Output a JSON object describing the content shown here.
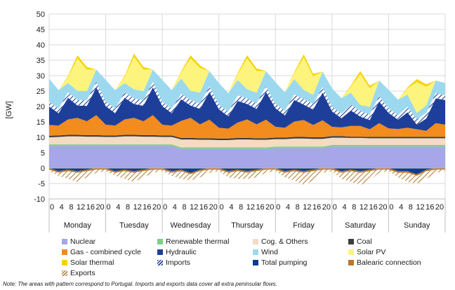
{
  "chart_data": {
    "type": "area",
    "title": "",
    "ylabel": "[GW]",
    "xlabel": "",
    "ylim": [
      -10,
      50
    ],
    "yticks": [
      -10,
      -5,
      0,
      5,
      10,
      15,
      20,
      25,
      30,
      35,
      40,
      45,
      50
    ],
    "hour_ticks": [
      "0",
      "4",
      "8",
      "12",
      "16",
      "20"
    ],
    "days": [
      "Monday",
      "Tuesday",
      "Wednesday",
      "Thursday",
      "Friday",
      "Saturday",
      "Sunday"
    ],
    "x": [
      0,
      4,
      8,
      12,
      16,
      20,
      24,
      28,
      32,
      36,
      40,
      44,
      48,
      52,
      56,
      60,
      64,
      68,
      72,
      76,
      80,
      84,
      88,
      92,
      96,
      100,
      104,
      108,
      112,
      116,
      120,
      124,
      128,
      132,
      136,
      140,
      144,
      148,
      152,
      156,
      160,
      164,
      168
    ],
    "grid": true,
    "legend_position": "bottom",
    "series": [
      {
        "name": "Nuclear",
        "color": "#a6a6e8",
        "pattern": false,
        "values": [
          7.2,
          7.2,
          7.2,
          7.2,
          7.2,
          7.2,
          7.2,
          7.2,
          7.2,
          7.2,
          7.2,
          7.2,
          7.2,
          7.2,
          6.2,
          6.2,
          6.2,
          6.2,
          6.2,
          6.2,
          6.2,
          6.2,
          6.2,
          6.2,
          6.5,
          6.5,
          6.5,
          6.5,
          6.5,
          6.5,
          7.0,
          7.0,
          7.0,
          7.0,
          7.0,
          7.0,
          7.0,
          7.0,
          7.0,
          7.0,
          7.0,
          7.0,
          7.0
        ]
      },
      {
        "name": "Renewable thermal",
        "color": "#7ccf87",
        "pattern": false,
        "values": [
          0.5,
          0.5,
          0.5,
          0.5,
          0.5,
          0.5,
          0.5,
          0.5,
          0.5,
          0.5,
          0.5,
          0.5,
          0.5,
          0.5,
          0.5,
          0.5,
          0.5,
          0.5,
          0.5,
          0.5,
          0.5,
          0.5,
          0.5,
          0.5,
          0.5,
          0.5,
          0.5,
          0.5,
          0.5,
          0.5,
          0.5,
          0.5,
          0.5,
          0.5,
          0.5,
          0.5,
          0.5,
          0.5,
          0.5,
          0.5,
          0.5,
          0.5,
          0.5
        ]
      },
      {
        "name": "Cog. & Others",
        "color": "#f3dcc3",
        "pattern": false,
        "values": [
          2.3,
          2.4,
          2.6,
          2.6,
          2.5,
          2.5,
          2.4,
          2.4,
          2.6,
          2.6,
          2.5,
          2.5,
          2.4,
          2.4,
          2.6,
          2.6,
          2.5,
          2.5,
          2.4,
          2.4,
          2.6,
          2.6,
          2.5,
          2.5,
          2.4,
          2.4,
          2.6,
          2.6,
          2.5,
          2.5,
          2.4,
          2.4,
          2.3,
          2.3,
          2.2,
          2.2,
          2.2,
          2.2,
          2.2,
          2.2,
          2.2,
          2.2,
          2.2
        ]
      },
      {
        "name": "Coal",
        "color": "#3d3d3d",
        "pattern": false,
        "values": [
          0.5,
          0.5,
          0.5,
          0.5,
          0.5,
          0.5,
          0.5,
          0.5,
          0.5,
          0.5,
          0.5,
          0.5,
          0.5,
          0.5,
          0.5,
          0.5,
          0.5,
          0.5,
          0.5,
          0.5,
          0.5,
          0.5,
          0.5,
          0.5,
          0.5,
          0.5,
          0.5,
          0.5,
          0.5,
          0.5,
          0.5,
          0.5,
          0.4,
          0.4,
          0.4,
          0.4,
          0.4,
          0.4,
          0.4,
          0.4,
          0.4,
          0.4,
          0.4
        ]
      },
      {
        "name": "Gas - combined cycle",
        "color": "#f28c1e",
        "pattern": false,
        "values": [
          3.5,
          3.2,
          5.0,
          5.5,
          4.5,
          6.5,
          3.5,
          3.2,
          5.0,
          5.5,
          4.5,
          6.5,
          3.5,
          3.2,
          5.5,
          6.5,
          4.5,
          6.0,
          3.5,
          3.2,
          5.0,
          6.0,
          4.5,
          6.0,
          3.5,
          3.2,
          5.0,
          5.5,
          4.0,
          5.5,
          3.0,
          2.8,
          3.5,
          3.5,
          2.5,
          4.5,
          2.8,
          2.6,
          3.0,
          2.5,
          2.0,
          4.5,
          4.0
        ]
      },
      {
        "name": "Hydraulic",
        "color": "#1e3f99",
        "pattern": false,
        "values": [
          6.0,
          4.0,
          7.0,
          4.0,
          5.0,
          9.0,
          6.0,
          4.0,
          7.0,
          4.5,
          5.0,
          9.0,
          6.0,
          4.0,
          7.0,
          4.0,
          5.0,
          9.0,
          6.0,
          4.0,
          7.0,
          5.0,
          5.0,
          9.0,
          6.0,
          4.0,
          7.0,
          5.0,
          5.0,
          9.0,
          5.0,
          3.0,
          5.0,
          3.0,
          3.0,
          7.0,
          5.0,
          3.0,
          5.0,
          1.5,
          4.0,
          8.0,
          8.0
        ]
      },
      {
        "name": "Imports",
        "color": "#ffffff",
        "pattern": true,
        "values": [
          1.5,
          1.5,
          1.8,
          1.8,
          1.8,
          1.8,
          1.5,
          1.5,
          1.8,
          1.8,
          1.8,
          1.8,
          1.5,
          1.5,
          1.8,
          1.8,
          1.8,
          1.8,
          1.5,
          1.5,
          1.8,
          1.8,
          1.8,
          1.8,
          1.5,
          1.5,
          1.8,
          1.8,
          1.8,
          1.8,
          1.5,
          1.5,
          1.8,
          1.8,
          1.8,
          1.8,
          1.5,
          1.5,
          1.8,
          1.8,
          1.8,
          1.8,
          1.5
        ]
      },
      {
        "name": "Wind",
        "color": "#9dd9ee",
        "pattern": false,
        "values": [
          7.5,
          6.0,
          3.0,
          3.0,
          3.0,
          4.0,
          7.0,
          6.0,
          3.0,
          3.0,
          3.0,
          4.0,
          7.0,
          6.0,
          5.0,
          3.0,
          3.5,
          5.0,
          7.0,
          6.0,
          5.0,
          3.0,
          3.5,
          5.0,
          7.0,
          6.0,
          5.0,
          3.0,
          3.0,
          5.0,
          6.0,
          5.0,
          4.0,
          2.0,
          2.5,
          5.0,
          6.0,
          5.0,
          4.0,
          2.0,
          2.5,
          4.0,
          4.0
        ]
      },
      {
        "name": "Solar PV",
        "color": "#fdf47d",
        "pattern": false,
        "values": [
          0,
          0,
          2.0,
          10.5,
          7.0,
          0,
          0,
          0,
          2.0,
          10.5,
          7.0,
          0,
          0,
          0,
          2.0,
          10.5,
          8.0,
          0,
          0,
          0,
          2.0,
          10.0,
          7.0,
          0,
          0,
          0,
          2.0,
          10.5,
          6.0,
          0,
          0,
          0,
          2.0,
          10.0,
          6.0,
          0,
          0,
          0,
          2.0,
          10.0,
          6.0,
          0,
          0
        ]
      },
      {
        "name": "Solar thermal",
        "color": "#f5d300",
        "pattern": false,
        "values": [
          0,
          0,
          0.3,
          1.0,
          0.8,
          0,
          0,
          0,
          0.3,
          1.0,
          0.8,
          0,
          0,
          0,
          0.3,
          1.0,
          0.8,
          0,
          0,
          0,
          0.3,
          1.0,
          0.8,
          0,
          0,
          0,
          0.3,
          1.0,
          0.8,
          0,
          0,
          0,
          0.3,
          1.0,
          0.8,
          0,
          0,
          0,
          0.3,
          1.0,
          0.8,
          0,
          0
        ]
      },
      {
        "name": "Total pumping",
        "color": "#0a3d8f",
        "pattern": false,
        "values": [
          0,
          -1,
          -0.5,
          -1,
          -0.5,
          0,
          0,
          -1,
          -0.5,
          -1,
          -0.5,
          0,
          0,
          -1,
          -0.5,
          -1.5,
          -0.5,
          0,
          0,
          -1,
          -0.5,
          -1,
          -0.5,
          0,
          0,
          -1,
          -0.5,
          -1,
          -0.5,
          0,
          0,
          -1,
          -0.5,
          -1,
          -0.5,
          0,
          0,
          -1,
          -1,
          -2,
          -0.5,
          0,
          0
        ]
      },
      {
        "name": "Balearic connection",
        "color": "#b9772e",
        "pattern": false,
        "values": [
          -0.5,
          -0.5,
          -0.5,
          -0.5,
          -0.5,
          -0.5,
          -0.5,
          -0.5,
          -0.5,
          -0.5,
          -0.5,
          -0.5,
          -0.5,
          -0.5,
          -0.5,
          -0.5,
          -0.5,
          -0.5,
          -0.5,
          -0.5,
          -0.5,
          -0.5,
          -0.5,
          -0.5,
          -0.5,
          -0.5,
          -0.5,
          -0.5,
          -0.5,
          -0.5,
          -0.5,
          -0.5,
          -0.5,
          -0.5,
          -0.5,
          -0.5,
          -0.5,
          -0.5,
          -0.5,
          -0.5,
          -0.5,
          -0.5,
          -0.5
        ]
      },
      {
        "name": "Exports",
        "color": "#ffffff",
        "pattern": true,
        "values": [
          -0.5,
          -1,
          -2.5,
          -3,
          -2,
          -1,
          -0.5,
          -1,
          -2.5,
          -3,
          -2,
          -1,
          -0.5,
          -1,
          -2.5,
          -2,
          -2,
          -1,
          -0.5,
          -1.5,
          -2.5,
          -2,
          -2,
          -1,
          -0.5,
          -1.5,
          -3,
          -4,
          -3,
          -1,
          -0.5,
          -2,
          -3.5,
          -4,
          -3,
          -1,
          -0.5,
          -1.5,
          -3,
          -2.5,
          -2.5,
          -1,
          -0.5
        ]
      }
    ],
    "exports_pattern_color": "#b3823f"
  },
  "legend": [
    {
      "label": "Nuclear",
      "color": "#a6a6e8",
      "kind": "solid"
    },
    {
      "label": "Renewable thermal",
      "color": "#7ccf87",
      "kind": "solid"
    },
    {
      "label": "Cog. & Others",
      "color": "#f3dcc3",
      "kind": "solid"
    },
    {
      "label": "Coal",
      "color": "#3d3d3d",
      "kind": "solid"
    },
    {
      "label": "Gas - combined cycle",
      "color": "#f28c1e",
      "kind": "solid"
    },
    {
      "label": "Hydraulic",
      "color": "#1e3f99",
      "kind": "solid"
    },
    {
      "label": "Wind",
      "color": "#9dd9ee",
      "kind": "solid"
    },
    {
      "label": "Solar PV",
      "color": "#fdf47d",
      "kind": "solid"
    },
    {
      "label": "Solar thermal",
      "color": "#f5d300",
      "kind": "solid"
    },
    {
      "label": "Imports",
      "color": "#1e3f99",
      "kind": "hatch"
    },
    {
      "label": "Total pumping",
      "color": "#0a3d8f",
      "kind": "solid"
    },
    {
      "label": "Balearic connection",
      "color": "#b9772e",
      "kind": "solid"
    },
    {
      "label": "Exports",
      "color": "#b3823f",
      "kind": "hatch"
    }
  ],
  "note": "Note: The areas with pattern correspond to Portugal. Imports and exports data cover all extra peninsular flows."
}
